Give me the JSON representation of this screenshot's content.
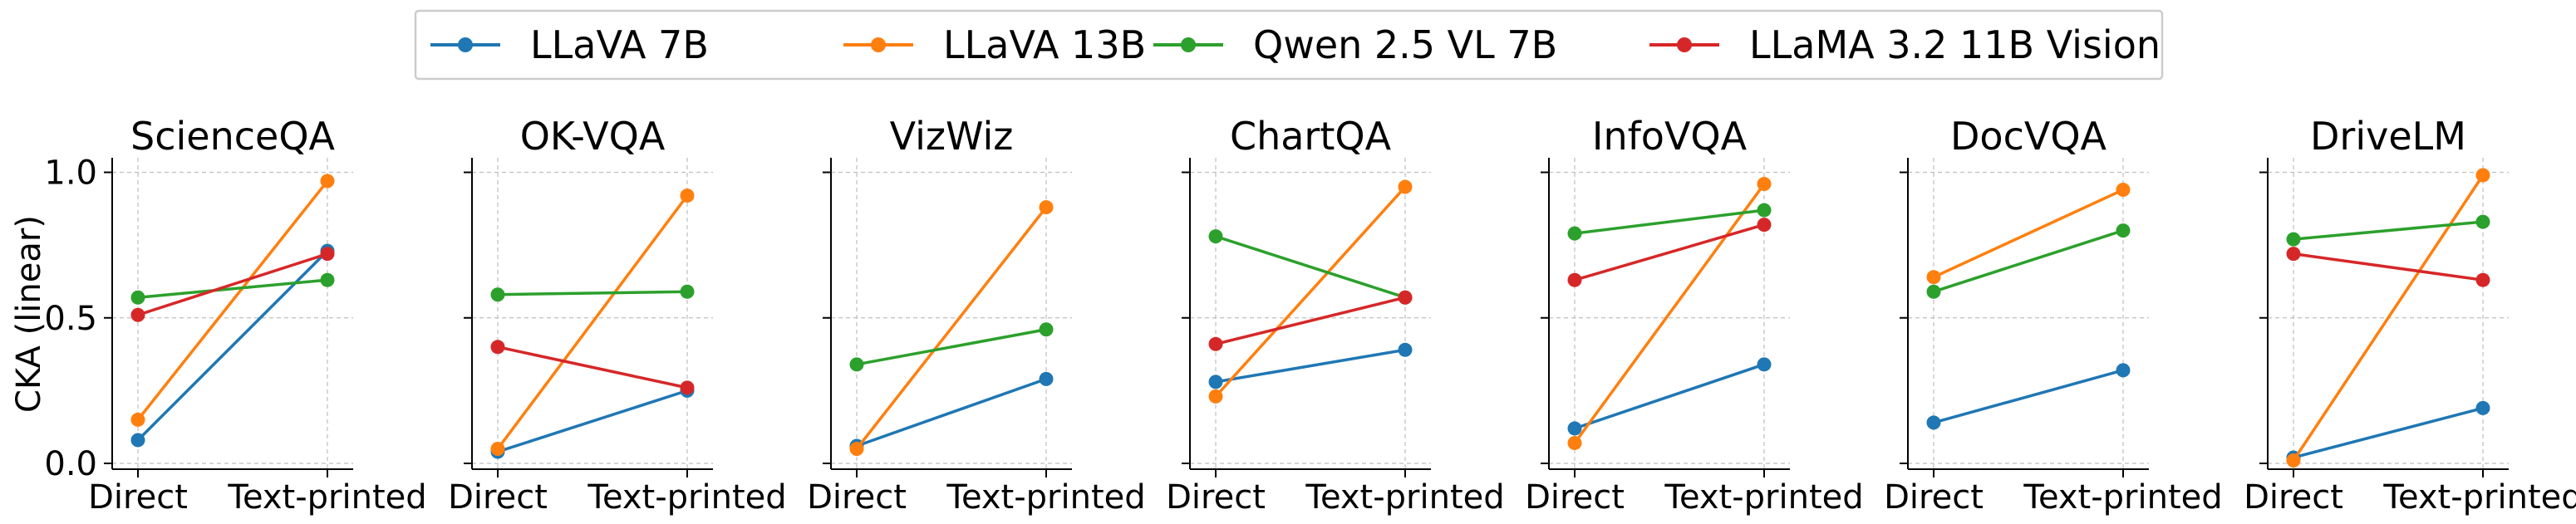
{
  "chart_data": {
    "type": "line",
    "ylabel": "CKA (linear)",
    "ylim": [
      -0.02,
      1.05
    ],
    "yticks": [
      0.0,
      0.5,
      1.0
    ],
    "ytick_labels": [
      "0.0",
      "0.5",
      "1.0"
    ],
    "categories": [
      "Direct",
      "Text-printed"
    ],
    "grid": true,
    "legend_placement": "top-center",
    "series_meta": [
      {
        "name": "LLaVA 7B",
        "color": "#1f77b4"
      },
      {
        "name": "LLaVA 13B",
        "color": "#ff7f0e"
      },
      {
        "name": "Qwen 2.5 VL 7B",
        "color": "#2ca02c"
      },
      {
        "name": "LLaMA 3.2 11B Vision",
        "color": "#d62728"
      }
    ],
    "panels": [
      {
        "title": "ScienceQA",
        "series": [
          [
            0.08,
            0.73
          ],
          [
            0.15,
            0.97
          ],
          [
            0.57,
            0.63
          ],
          [
            0.51,
            0.72
          ]
        ]
      },
      {
        "title": "OK-VQA",
        "series": [
          [
            0.04,
            0.25
          ],
          [
            0.05,
            0.92
          ],
          [
            0.58,
            0.59
          ],
          [
            0.4,
            0.26
          ]
        ]
      },
      {
        "title": "VizWiz",
        "series": [
          [
            0.06,
            0.29
          ],
          [
            0.05,
            0.88
          ],
          [
            0.34,
            0.46
          ],
          null
        ]
      },
      {
        "title": "ChartQA",
        "series": [
          [
            0.28,
            0.39
          ],
          [
            0.23,
            0.95
          ],
          [
            0.78,
            0.57
          ],
          [
            0.41,
            0.57
          ]
        ]
      },
      {
        "title": "InfoVQA",
        "series": [
          [
            0.12,
            0.34
          ],
          [
            0.07,
            0.96
          ],
          [
            0.79,
            0.87
          ],
          [
            0.63,
            0.82
          ]
        ]
      },
      {
        "title": "DocVQA",
        "series": [
          [
            0.14,
            0.32
          ],
          [
            0.64,
            0.94
          ],
          [
            0.59,
            0.8
          ],
          null
        ]
      },
      {
        "title": "DriveLM",
        "series": [
          [
            0.02,
            0.19
          ],
          [
            0.01,
            0.99
          ],
          [
            0.77,
            0.83
          ],
          [
            0.72,
            0.63
          ]
        ]
      }
    ]
  }
}
